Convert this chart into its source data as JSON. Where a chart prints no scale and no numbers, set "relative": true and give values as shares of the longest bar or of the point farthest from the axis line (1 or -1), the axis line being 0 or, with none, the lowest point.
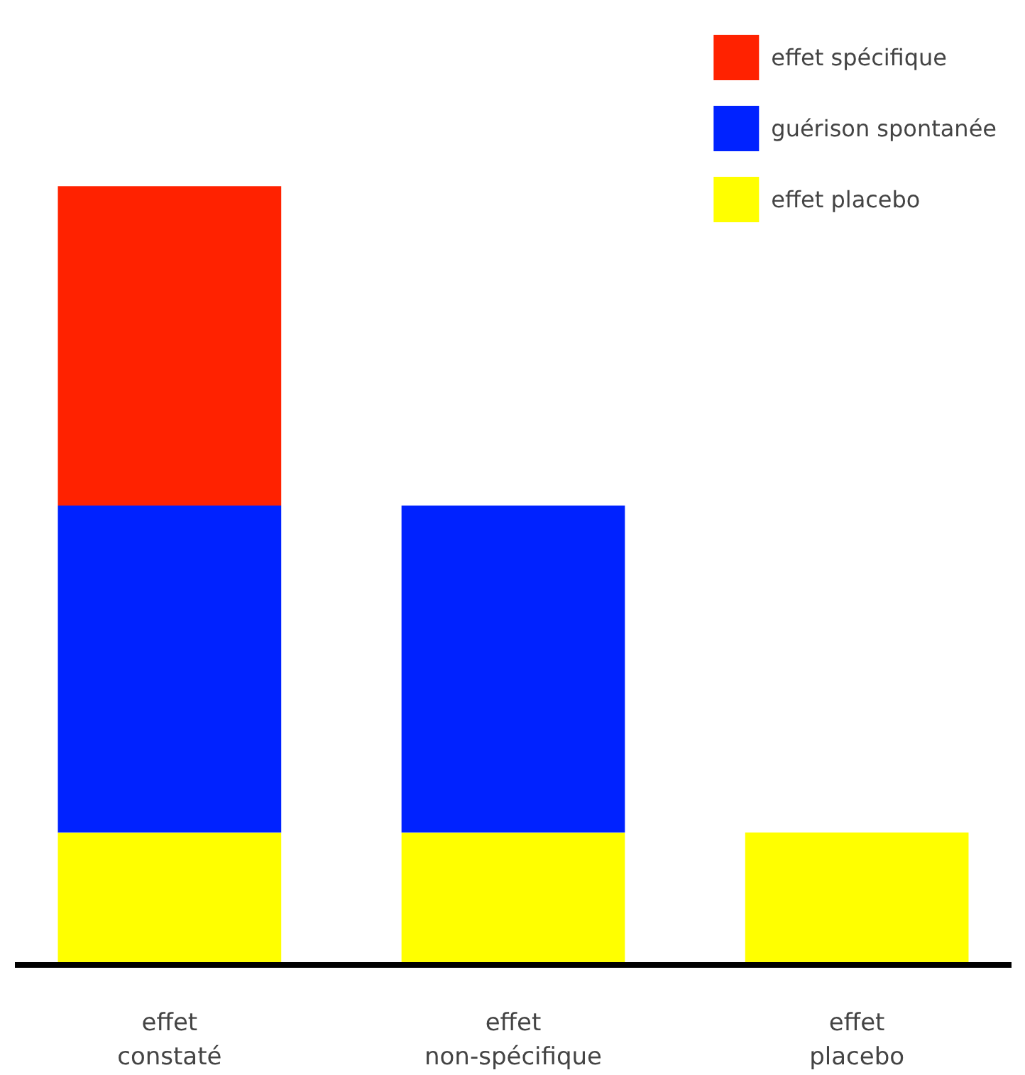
{
  "chart_data": {
    "type": "bar",
    "stacked": true,
    "relative": true,
    "categories": [
      "effet\nconstaté",
      "effet\nnon-spécifique",
      "effet\nplacebo"
    ],
    "series": [
      {
        "name": "effet placebo",
        "color": "#ffff00",
        "values": [
          0.17,
          0.17,
          0.17
        ]
      },
      {
        "name": "guérison spontanée",
        "color": "#0022ff",
        "values": [
          0.42,
          0.42,
          null
        ]
      },
      {
        "name": "effet spécifique",
        "color": "#ff2200",
        "values": [
          0.41,
          null,
          null
        ]
      }
    ],
    "legend": "top right",
    "grid": false
  }
}
